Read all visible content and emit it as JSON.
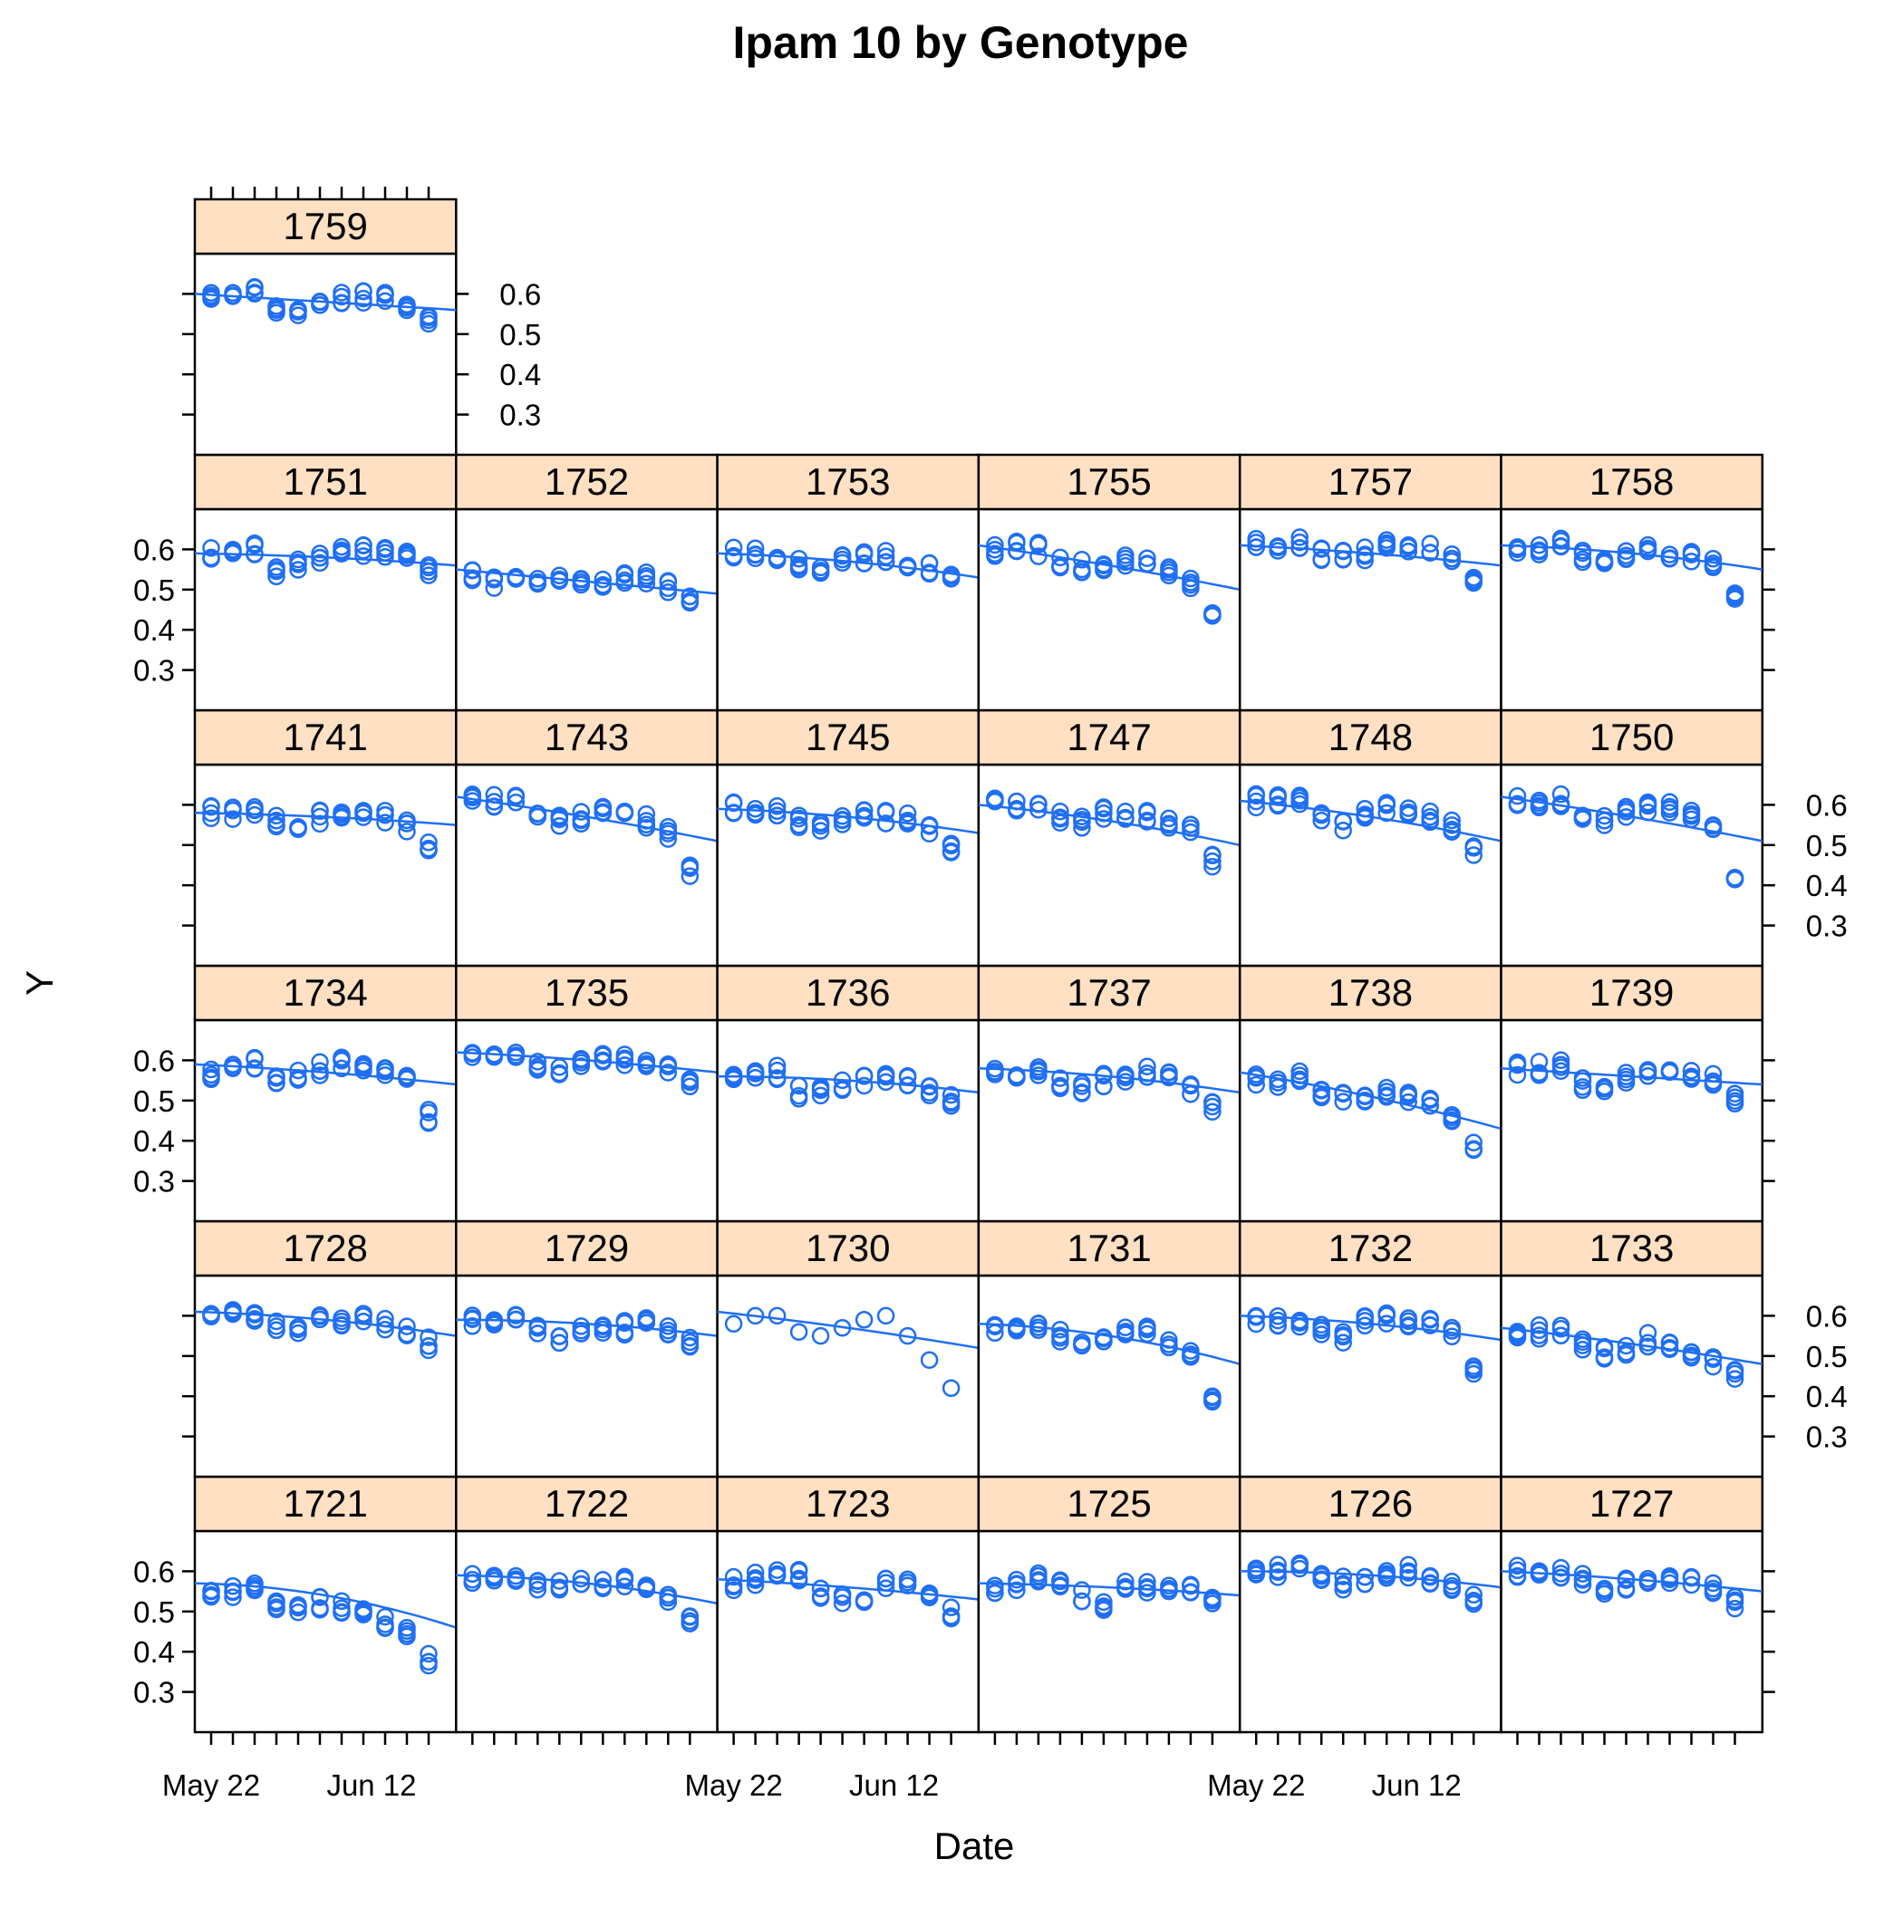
{
  "chart_data": {
    "type": "scatter",
    "title": "Ipam 10 by Genotype",
    "xlabel": "Date",
    "ylabel": "Y",
    "x_ticks": [
      "May 22",
      "Jun 12"
    ],
    "y_ticks": [
      0.3,
      0.4,
      0.5,
      0.6
    ],
    "ylim": [
      0.2,
      0.7
    ],
    "grid": false,
    "colors": {
      "points": "#1f6ff5",
      "strip": "#ffe0c3",
      "frame": "#000000",
      "background": "#ffffff"
    },
    "x_date_values": [
      "May 20",
      "May 23",
      "May 26",
      "May 29",
      "Jun 1",
      "Jun 4",
      "Jun 7",
      "Jun 10",
      "Jun 13",
      "Jun 16",
      "Jun 19"
    ],
    "panels": [
      {
        "genotype": "1721",
        "values": [
          0.55,
          0.55,
          0.56,
          0.52,
          0.51,
          0.52,
          0.51,
          0.5,
          0.47,
          0.45,
          0.38
        ],
        "fit": [
          0.57,
          0.54,
          0.46
        ]
      },
      {
        "genotype": "1722",
        "values": [
          0.58,
          0.58,
          0.59,
          0.57,
          0.56,
          0.57,
          0.57,
          0.57,
          0.55,
          0.54,
          0.48
        ],
        "fit": [
          0.59,
          0.57,
          0.52
        ]
      },
      {
        "genotype": "1723",
        "values": [
          0.57,
          0.58,
          0.59,
          0.59,
          0.55,
          0.53,
          0.54,
          0.57,
          0.58,
          0.55,
          0.5
        ],
        "fit": [
          0.58,
          0.56,
          0.53
        ]
      },
      {
        "genotype": "1725",
        "values": [
          0.56,
          0.57,
          0.58,
          0.57,
          0.54,
          0.52,
          0.56,
          0.56,
          0.55,
          0.55,
          0.52
        ],
        "fit": [
          0.57,
          0.56,
          0.54
        ]
      },
      {
        "genotype": "1726",
        "values": [
          0.59,
          0.6,
          0.61,
          0.58,
          0.57,
          0.58,
          0.6,
          0.6,
          0.58,
          0.56,
          0.53
        ],
        "fit": [
          0.6,
          0.59,
          0.56
        ]
      },
      {
        "genotype": "1727",
        "values": [
          0.6,
          0.6,
          0.6,
          0.58,
          0.56,
          0.57,
          0.58,
          0.58,
          0.57,
          0.56,
          0.52
        ],
        "fit": [
          0.6,
          0.58,
          0.55
        ]
      },
      {
        "genotype": "1728",
        "values": [
          0.61,
          0.6,
          0.6,
          0.57,
          0.57,
          0.59,
          0.59,
          0.59,
          0.58,
          0.56,
          0.53
        ],
        "fit": [
          0.61,
          0.59,
          0.55
        ]
      },
      {
        "genotype": "1729",
        "values": [
          0.59,
          0.59,
          0.6,
          0.57,
          0.55,
          0.57,
          0.56,
          0.57,
          0.58,
          0.57,
          0.53
        ],
        "fit": [
          0.59,
          0.58,
          0.55
        ]
      },
      {
        "genotype": "1730",
        "values": [
          0.58,
          0.6,
          0.6,
          0.56,
          0.55,
          0.57,
          0.59,
          0.6,
          0.55,
          0.49,
          0.42
        ],
        "fit": [
          0.61,
          0.57,
          0.52
        ]
      },
      {
        "genotype": "1731",
        "values": [
          0.57,
          0.58,
          0.58,
          0.55,
          0.54,
          0.55,
          0.56,
          0.56,
          0.53,
          0.5,
          0.4
        ],
        "fit": [
          0.58,
          0.55,
          0.48
        ]
      },
      {
        "genotype": "1732",
        "values": [
          0.59,
          0.59,
          0.59,
          0.57,
          0.55,
          0.59,
          0.59,
          0.58,
          0.58,
          0.56,
          0.47
        ],
        "fit": [
          0.6,
          0.58,
          0.54
        ]
      },
      {
        "genotype": "1733",
        "values": [
          0.56,
          0.56,
          0.56,
          0.53,
          0.51,
          0.52,
          0.54,
          0.53,
          0.51,
          0.49,
          0.45
        ],
        "fit": [
          0.57,
          0.53,
          0.48
        ]
      },
      {
        "genotype": "1734",
        "values": [
          0.57,
          0.58,
          0.59,
          0.55,
          0.56,
          0.58,
          0.59,
          0.58,
          0.57,
          0.55,
          0.46
        ],
        "fit": [
          0.59,
          0.57,
          0.54
        ]
      },
      {
        "genotype": "1735",
        "values": [
          0.62,
          0.62,
          0.62,
          0.59,
          0.58,
          0.6,
          0.6,
          0.6,
          0.6,
          0.58,
          0.54
        ],
        "fit": [
          0.62,
          0.6,
          0.57
        ]
      },
      {
        "genotype": "1736",
        "values": [
          0.55,
          0.56,
          0.57,
          0.52,
          0.52,
          0.54,
          0.55,
          0.56,
          0.55,
          0.53,
          0.5
        ],
        "fit": [
          0.56,
          0.55,
          0.52
        ]
      },
      {
        "genotype": "1737",
        "values": [
          0.57,
          0.57,
          0.58,
          0.54,
          0.53,
          0.55,
          0.56,
          0.57,
          0.56,
          0.53,
          0.48
        ],
        "fit": [
          0.58,
          0.56,
          0.52
        ]
      },
      {
        "genotype": "1738",
        "values": [
          0.55,
          0.55,
          0.56,
          0.52,
          0.51,
          0.5,
          0.52,
          0.51,
          0.49,
          0.46,
          0.38
        ],
        "fit": [
          0.57,
          0.51,
          0.43
        ]
      },
      {
        "genotype": "1739",
        "values": [
          0.58,
          0.58,
          0.59,
          0.54,
          0.53,
          0.56,
          0.57,
          0.58,
          0.57,
          0.55,
          0.5
        ],
        "fit": [
          0.58,
          0.56,
          0.54
        ]
      },
      {
        "genotype": "1741",
        "values": [
          0.58,
          0.58,
          0.58,
          0.56,
          0.55,
          0.57,
          0.58,
          0.58,
          0.57,
          0.55,
          0.5
        ],
        "fit": [
          0.58,
          0.57,
          0.55
        ]
      },
      {
        "genotype": "1743",
        "values": [
          0.61,
          0.61,
          0.61,
          0.58,
          0.56,
          0.57,
          0.58,
          0.57,
          0.56,
          0.53,
          0.44
        ],
        "fit": [
          0.62,
          0.57,
          0.51
        ]
      },
      {
        "genotype": "1745",
        "values": [
          0.59,
          0.59,
          0.59,
          0.56,
          0.54,
          0.56,
          0.57,
          0.57,
          0.57,
          0.54,
          0.49
        ],
        "fit": [
          0.59,
          0.57,
          0.53
        ]
      },
      {
        "genotype": "1747",
        "values": [
          0.6,
          0.6,
          0.6,
          0.57,
          0.56,
          0.58,
          0.58,
          0.57,
          0.56,
          0.54,
          0.46
        ],
        "fit": [
          0.6,
          0.56,
          0.5
        ]
      },
      {
        "genotype": "1748",
        "values": [
          0.61,
          0.61,
          0.61,
          0.57,
          0.55,
          0.58,
          0.59,
          0.58,
          0.57,
          0.55,
          0.49
        ],
        "fit": [
          0.61,
          0.57,
          0.51
        ]
      },
      {
        "genotype": "1750",
        "values": [
          0.61,
          0.61,
          0.61,
          0.58,
          0.56,
          0.58,
          0.59,
          0.59,
          0.57,
          0.54,
          0.43
        ],
        "fit": [
          0.62,
          0.57,
          0.51
        ]
      },
      {
        "genotype": "1751",
        "values": [
          0.59,
          0.59,
          0.6,
          0.55,
          0.56,
          0.58,
          0.59,
          0.6,
          0.59,
          0.58,
          0.55
        ],
        "fit": [
          0.59,
          0.58,
          0.56
        ]
      },
      {
        "genotype": "1752",
        "values": [
          0.54,
          0.52,
          0.54,
          0.51,
          0.52,
          0.51,
          0.52,
          0.53,
          0.53,
          0.51,
          0.48
        ],
        "fit": [
          0.55,
          0.52,
          0.49
        ]
      },
      {
        "genotype": "1753",
        "values": [
          0.59,
          0.59,
          0.59,
          0.56,
          0.55,
          0.58,
          0.58,
          0.58,
          0.57,
          0.55,
          0.52
        ],
        "fit": [
          0.59,
          0.57,
          0.53
        ]
      },
      {
        "genotype": "1755",
        "values": [
          0.6,
          0.61,
          0.6,
          0.57,
          0.56,
          0.56,
          0.57,
          0.57,
          0.55,
          0.52,
          0.43
        ],
        "fit": [
          0.61,
          0.56,
          0.5
        ]
      },
      {
        "genotype": "1757",
        "values": [
          0.61,
          0.61,
          0.62,
          0.59,
          0.58,
          0.59,
          0.61,
          0.61,
          0.6,
          0.58,
          0.53
        ],
        "fit": [
          0.61,
          0.59,
          0.56
        ]
      },
      {
        "genotype": "1758",
        "values": [
          0.6,
          0.6,
          0.61,
          0.58,
          0.57,
          0.59,
          0.6,
          0.59,
          0.58,
          0.56,
          0.49
        ],
        "fit": [
          0.61,
          0.59,
          0.55
        ]
      },
      {
        "genotype": "1759",
        "values": [
          0.6,
          0.6,
          0.6,
          0.56,
          0.56,
          0.58,
          0.59,
          0.59,
          0.59,
          0.57,
          0.54
        ],
        "fit": [
          0.6,
          0.58,
          0.56
        ]
      }
    ]
  }
}
